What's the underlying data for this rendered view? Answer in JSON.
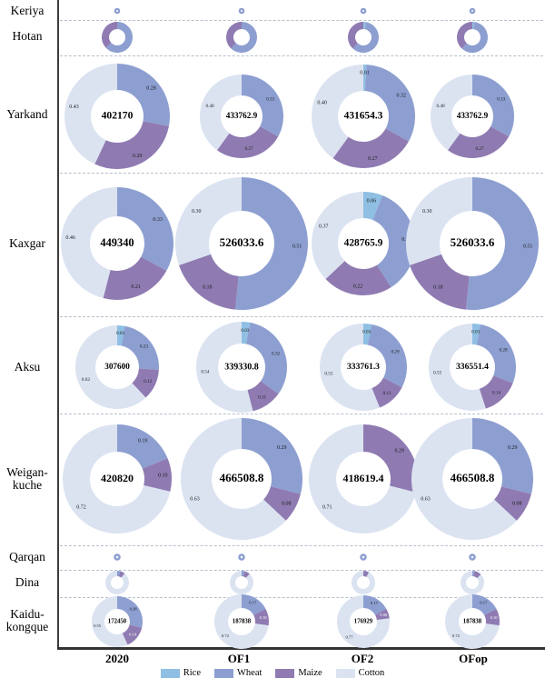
{
  "axis": {
    "row_labels": [
      "Keriya",
      "Hotan",
      "Yarkand",
      "Kaxgar",
      "Aksu",
      "Weigan-kuche",
      "Qarqan",
      "Dina",
      "Kaidu-kongque"
    ],
    "col_labels": [
      "2020",
      "OF1",
      "OF2",
      "OFop"
    ]
  },
  "legend": {
    "items": [
      {
        "label": "Rice",
        "color": "#8fbfe2"
      },
      {
        "label": "Wheat",
        "color": "#8d9fd1"
      },
      {
        "label": "Maize",
        "color": "#8f7bb2"
      },
      {
        "label": "Cotton",
        "color": "#dbe3f1"
      }
    ]
  },
  "chart_data": {
    "type": "pie",
    "layout": "matrix of donut charts; rows = regions, columns = scenarios; donut size proportional to total, center value = total area, slice labels = crop share",
    "columns": [
      "2020",
      "OF1",
      "OF2",
      "OFop"
    ],
    "rows": [
      "Keriya",
      "Hotan",
      "Yarkand",
      "Kaxgar",
      "Aksu",
      "Weigan-kuche",
      "Qarqan",
      "Dina",
      "Kaidu-kongque"
    ],
    "crops": [
      "Rice",
      "Wheat",
      "Maize",
      "Cotton"
    ],
    "colors": {
      "rice": "#8fbfe2",
      "wheat": "#8d9fd1",
      "maize": "#8f7bb2",
      "cotton": "#dbe3f1"
    },
    "legend_position": "bottom center",
    "cells": [
      {
        "region": "Keriya",
        "scenario": "2020",
        "ring": true,
        "radius": 3
      },
      {
        "region": "Keriya",
        "scenario": "OF1",
        "ring": true,
        "radius": 3
      },
      {
        "region": "Keriya",
        "scenario": "OF2",
        "ring": true,
        "radius": 3
      },
      {
        "region": "Keriya",
        "scenario": "OFop",
        "ring": true,
        "radius": 3
      },
      {
        "region": "Hotan",
        "scenario": "2020",
        "radius": 17,
        "hole": 9,
        "slices": [
          {
            "crop": "wheat",
            "value": 0.63
          },
          {
            "crop": "maize",
            "value": 0.37
          }
        ]
      },
      {
        "region": "Hotan",
        "scenario": "OF1",
        "radius": 17,
        "hole": 9,
        "slices": [
          {
            "crop": "wheat",
            "value": 0.62
          },
          {
            "crop": "maize",
            "value": 0.38
          }
        ]
      },
      {
        "region": "Hotan",
        "scenario": "OF2",
        "radius": 17,
        "hole": 9,
        "slices": [
          {
            "crop": "rice",
            "value": 0.03
          },
          {
            "crop": "wheat",
            "value": 0.59
          },
          {
            "crop": "maize",
            "value": 0.38
          }
        ]
      },
      {
        "region": "Hotan",
        "scenario": "OFop",
        "radius": 17,
        "hole": 9,
        "slices": [
          {
            "crop": "rice",
            "value": 0.02
          },
          {
            "crop": "wheat",
            "value": 0.6
          },
          {
            "crop": "maize",
            "value": 0.38
          }
        ]
      },
      {
        "region": "Yarkand",
        "scenario": "2020",
        "total": "402170",
        "radius": 58,
        "hole": 29,
        "slices": [
          {
            "crop": "wheat",
            "value": 0.28,
            "label": "0.28"
          },
          {
            "crop": "maize",
            "value": 0.29,
            "label": "0.29"
          },
          {
            "crop": "cotton",
            "value": 0.43,
            "label": "0.43"
          }
        ]
      },
      {
        "region": "Yarkand",
        "scenario": "OF1",
        "total": "433762.9",
        "radius": 46,
        "hole": 23,
        "slices": [
          {
            "crop": "wheat",
            "value": 0.33,
            "label": "0.33"
          },
          {
            "crop": "maize",
            "value": 0.27,
            "label": "0.27"
          },
          {
            "crop": "cotton",
            "value": 0.4,
            "label": "0.40"
          }
        ]
      },
      {
        "region": "Yarkand",
        "scenario": "OF2",
        "total": "431654.3",
        "radius": 57,
        "hole": 28,
        "slices": [
          {
            "crop": "rice",
            "value": 0.01,
            "label": "0.01"
          },
          {
            "crop": "wheat",
            "value": 0.32,
            "label": "0.32"
          },
          {
            "crop": "maize",
            "value": 0.27,
            "label": "0.27"
          },
          {
            "crop": "cotton",
            "value": 0.4,
            "label": "0.40"
          }
        ]
      },
      {
        "region": "Yarkand",
        "scenario": "OFop",
        "total": "433762.9",
        "radius": 46,
        "hole": 23,
        "slices": [
          {
            "crop": "wheat",
            "value": 0.33,
            "label": "0.33"
          },
          {
            "crop": "maize",
            "value": 0.27,
            "label": "0.27"
          },
          {
            "crop": "cotton",
            "value": 0.4,
            "label": "0.40"
          }
        ]
      },
      {
        "region": "Kaxgar",
        "scenario": "2020",
        "total": "449340",
        "radius": 62,
        "hole": 30,
        "slices": [
          {
            "crop": "wheat",
            "value": 0.33,
            "label": "0.33"
          },
          {
            "crop": "maize",
            "value": 0.21,
            "label": "0.21"
          },
          {
            "crop": "cotton",
            "value": 0.46,
            "label": "0.46"
          }
        ]
      },
      {
        "region": "Kaxgar",
        "scenario": "OF1",
        "total": "526033.6",
        "radius": 73,
        "hole": 36,
        "slices": [
          {
            "crop": "wheat",
            "value": 0.51,
            "label": "0.51"
          },
          {
            "crop": "maize",
            "value": 0.18,
            "label": "0.18"
          },
          {
            "crop": "cotton",
            "value": 0.3,
            "label": "0.30"
          }
        ]
      },
      {
        "region": "Kaxgar",
        "scenario": "OF2",
        "total": "428765.9",
        "radius": 57,
        "hole": 28,
        "slices": [
          {
            "crop": "rice",
            "value": 0.06,
            "label": "0.06"
          },
          {
            "crop": "wheat",
            "value": 0.35,
            "label": "0.35"
          },
          {
            "crop": "maize",
            "value": 0.22,
            "label": "0.22"
          },
          {
            "crop": "cotton",
            "value": 0.37,
            "label": "0.37"
          }
        ]
      },
      {
        "region": "Kaxgar",
        "scenario": "OFop",
        "total": "526033.6",
        "radius": 73,
        "hole": 36,
        "slices": [
          {
            "crop": "wheat",
            "value": 0.51,
            "label": "0.51"
          },
          {
            "crop": "maize",
            "value": 0.18,
            "label": "0.18"
          },
          {
            "crop": "cotton",
            "value": 0.3,
            "label": "0.30"
          }
        ]
      },
      {
        "region": "Aksu",
        "scenario": "2020",
        "total": "307600",
        "radius": 46,
        "hole": 24,
        "slices": [
          {
            "crop": "rice",
            "value": 0.03,
            "label": "0.03"
          },
          {
            "crop": "wheat",
            "value": 0.23,
            "label": "0.23"
          },
          {
            "crop": "maize",
            "value": 0.12,
            "label": "0.12"
          },
          {
            "crop": "cotton",
            "value": 0.62,
            "label": "0.62"
          }
        ]
      },
      {
        "region": "Aksu",
        "scenario": "OF1",
        "total": "339330.8",
        "radius": 50,
        "hole": 26,
        "slices": [
          {
            "crop": "rice",
            "value": 0.03,
            "label": "0.03"
          },
          {
            "crop": "wheat",
            "value": 0.32,
            "label": "0.32"
          },
          {
            "crop": "maize",
            "value": 0.11,
            "label": "0.11"
          },
          {
            "crop": "cotton",
            "value": 0.54,
            "label": "0.54"
          }
        ]
      },
      {
        "region": "Aksu",
        "scenario": "OF2",
        "total": "333761.3",
        "radius": 48,
        "hole": 25,
        "slices": [
          {
            "crop": "rice",
            "value": 0.03,
            "label": "0.03"
          },
          {
            "crop": "wheat",
            "value": 0.29,
            "label": "0.29"
          },
          {
            "crop": "maize",
            "value": 0.11,
            "label": "0.11"
          },
          {
            "crop": "cotton",
            "value": 0.55,
            "label": "0.55"
          }
        ]
      },
      {
        "region": "Aksu",
        "scenario": "OFop",
        "total": "336551.4",
        "radius": 48,
        "hole": 25,
        "slices": [
          {
            "crop": "rice",
            "value": 0.03,
            "label": "0.03"
          },
          {
            "crop": "wheat",
            "value": 0.28,
            "label": "0.28"
          },
          {
            "crop": "maize",
            "value": 0.14,
            "label": "0.14"
          },
          {
            "crop": "cotton",
            "value": 0.55,
            "label": "0.55"
          }
        ]
      },
      {
        "region": "Weigan-kuche",
        "scenario": "2020",
        "total": "420820",
        "radius": 60,
        "hole": 30,
        "slices": [
          {
            "crop": "wheat",
            "value": 0.19,
            "label": "0.19"
          },
          {
            "crop": "maize",
            "value": 0.1,
            "label": "0.10"
          },
          {
            "crop": "cotton",
            "value": 0.72,
            "label": "0.72"
          }
        ]
      },
      {
        "region": "Weigan-kuche",
        "scenario": "OF1",
        "total": "466508.8",
        "radius": 67,
        "hole": 33,
        "slices": [
          {
            "crop": "wheat",
            "value": 0.29,
            "label": "0.29"
          },
          {
            "crop": "maize",
            "value": 0.08,
            "label": "0.08"
          },
          {
            "crop": "cotton",
            "value": 0.63,
            "label": "0.63"
          }
        ]
      },
      {
        "region": "Weigan-kuche",
        "scenario": "OF2",
        "total": "418619.4",
        "radius": 60,
        "hole": 30,
        "slices": [
          {
            "crop": "maize",
            "value": 0.29,
            "label": "0.29"
          },
          {
            "crop": "cotton",
            "value": 0.71,
            "label": "0.71"
          }
        ]
      },
      {
        "region": "Weigan-kuche",
        "scenario": "OFop",
        "total": "466508.8",
        "radius": 67,
        "hole": 33,
        "slices": [
          {
            "crop": "wheat",
            "value": 0.29,
            "label": "0.29"
          },
          {
            "crop": "maize",
            "value": 0.08,
            "label": "0.08"
          },
          {
            "crop": "cotton",
            "value": 0.63,
            "label": "0.63"
          }
        ]
      },
      {
        "region": "Qarqan",
        "scenario": "2020",
        "ring": true,
        "radius": 3.5
      },
      {
        "region": "Qarqan",
        "scenario": "OF1",
        "ring": true,
        "radius": 3.5
      },
      {
        "region": "Qarqan",
        "scenario": "OF2",
        "ring": true,
        "radius": 3.5
      },
      {
        "region": "Qarqan",
        "scenario": "OFop",
        "ring": true,
        "radius": 3.5
      },
      {
        "region": "Dina",
        "scenario": "2020",
        "radius": 13,
        "hole": 7,
        "slices": [
          {
            "crop": "wheat",
            "value": 0.04
          },
          {
            "crop": "maize",
            "value": 0.07
          },
          {
            "crop": "cotton",
            "value": 0.89
          }
        ]
      },
      {
        "region": "Dina",
        "scenario": "OF1",
        "radius": 13,
        "hole": 7,
        "slices": [
          {
            "crop": "wheat",
            "value": 0.04
          },
          {
            "crop": "maize",
            "value": 0.08
          },
          {
            "crop": "cotton",
            "value": 0.88
          }
        ]
      },
      {
        "region": "Dina",
        "scenario": "OF2",
        "radius": 13,
        "hole": 7,
        "slices": [
          {
            "crop": "maize",
            "value": 0.08
          },
          {
            "crop": "cotton",
            "value": 0.92
          }
        ]
      },
      {
        "region": "Dina",
        "scenario": "OFop",
        "radius": 13,
        "hole": 7,
        "slices": [
          {
            "crop": "wheat",
            "value": 0.03
          },
          {
            "crop": "maize",
            "value": 0.1
          },
          {
            "crop": "cotton",
            "value": 0.87
          }
        ]
      },
      {
        "region": "Kaidu-kongque",
        "scenario": "2020",
        "total": "172450",
        "radius": 28,
        "hole": 14,
        "slices": [
          {
            "crop": "wheat",
            "value": 0.28,
            "label": "0.28"
          },
          {
            "crop": "maize",
            "value": 0.14,
            "label": "0.14",
            "light": true
          },
          {
            "crop": "cotton",
            "value": 0.55,
            "label": "0.55"
          }
        ]
      },
      {
        "region": "Kaidu-kongque",
        "scenario": "OF1",
        "total": "187838",
        "radius": 30,
        "hole": 15,
        "slices": [
          {
            "crop": "wheat",
            "value": 0.17,
            "label": "0.17"
          },
          {
            "crop": "maize",
            "value": 0.1,
            "label": "0.10",
            "light": true
          },
          {
            "crop": "cotton",
            "value": 0.72,
            "label": "0.72"
          }
        ]
      },
      {
        "region": "Kaidu-kongque",
        "scenario": "OF2",
        "total": "176929",
        "radius": 29,
        "hole": 15,
        "slices": [
          {
            "crop": "wheat",
            "value": 0.17,
            "label": "0.17"
          },
          {
            "crop": "maize",
            "value": 0.06,
            "label": "0.06",
            "light": true
          },
          {
            "crop": "cotton",
            "value": 0.77,
            "label": "0.77"
          }
        ]
      },
      {
        "region": "Kaidu-kongque",
        "scenario": "OFop",
        "total": "187838",
        "radius": 30,
        "hole": 15,
        "slices": [
          {
            "crop": "wheat",
            "value": 0.17,
            "label": "0.17"
          },
          {
            "crop": "maize",
            "value": 0.1,
            "label": "0.10",
            "light": true
          },
          {
            "crop": "cotton",
            "value": 0.72,
            "label": "0.72"
          }
        ]
      }
    ]
  }
}
